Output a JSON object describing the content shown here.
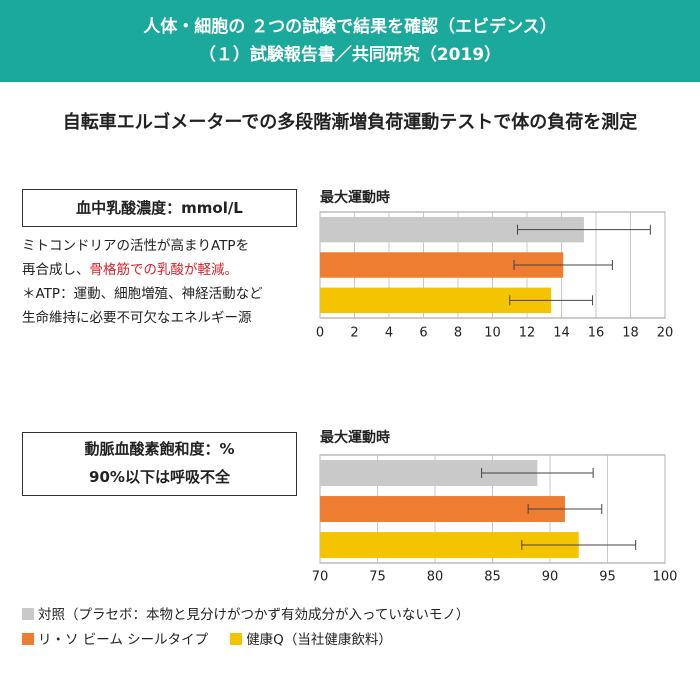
{
  "header": {
    "title": "人体・細胞の ２つの試験で結果を確認（エビデンス）",
    "subtitle": "（１）試験報告書／共同研究（2019）"
  },
  "heading": "自転車エルゴメーターでの多段階漸増負荷運動テストで体の負荷を測定",
  "panels": [
    {
      "label": "血中乳酸濃度：mmol/L",
      "description": [
        "ミトコンドリアの活性が高まりATPを",
        "再合成し、",
        "骨格筋での乳酸が軽減。"
      ],
      "note": [
        "＊ATP：運動、細胞増殖、神経活動など",
        "生命維持に必要不可欠なエネルギー源"
      ]
    },
    {
      "label": [
        "動脈血酸素飽和度：%",
        "90%以下は呼吸不全"
      ]
    }
  ],
  "chart_data": [
    {
      "type": "bar",
      "orientation": "horizontal",
      "title": "最大運動時",
      "values": [
        15.3,
        14.1,
        13.4
      ],
      "errors": [
        3.85,
        2.85,
        2.4
      ],
      "colors": [
        "#c9c9c9",
        "#ee7d31",
        "#f5c400"
      ],
      "xlim": [
        0,
        20
      ],
      "xticks": [
        0,
        2,
        4,
        6,
        8,
        10,
        12,
        14,
        16,
        18,
        20
      ],
      "grid": true
    },
    {
      "type": "bar",
      "orientation": "horizontal",
      "title": "最大運動時",
      "values": [
        88.9,
        91.3,
        92.5
      ],
      "errors": [
        4.85,
        3.2,
        4.95
      ],
      "colors": [
        "#c9c9c9",
        "#ee7d31",
        "#f5c400"
      ],
      "xlim": [
        70,
        100
      ],
      "xticks": [
        70,
        75,
        80,
        85,
        90,
        95,
        100
      ],
      "grid": true
    }
  ],
  "legend": [
    {
      "name": "対照（プラセボ：本物と見分けがつかず有効成分が入っていないモノ）",
      "color": "#c9c9c9"
    },
    {
      "name": "リ・ソ ビーム シールタイプ",
      "color": "#ee7d31"
    },
    {
      "name": "健康Q（当社健康飲料）",
      "color": "#f5c400"
    }
  ]
}
